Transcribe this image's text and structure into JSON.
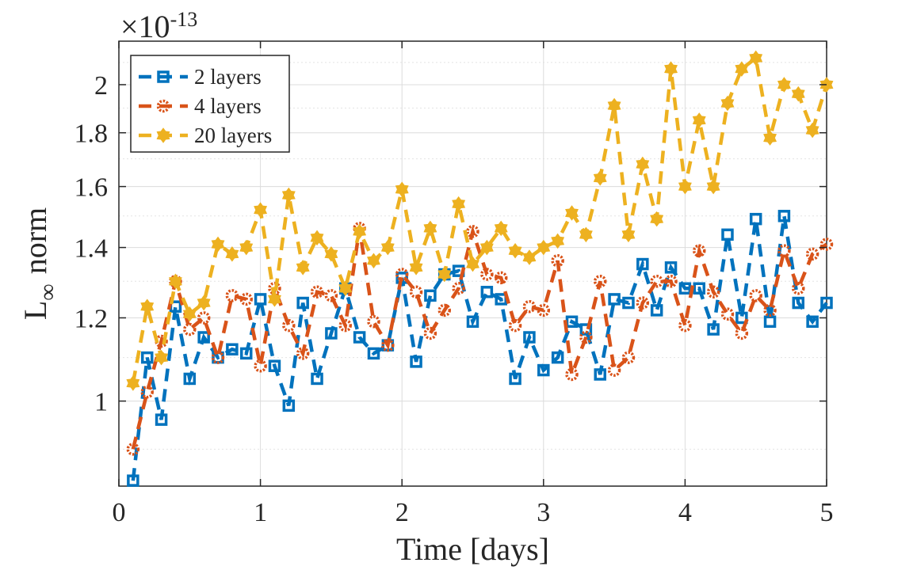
{
  "chart_data": {
    "type": "line",
    "title": "",
    "xlabel": "Time [days]",
    "ylabel_main": "L",
    "ylabel_sub": "∞",
    "ylabel_rest": "norm",
    "yscale": "log",
    "exponent_label": {
      "base": "×10",
      "exp": "-13"
    },
    "xlim": [
      0,
      5
    ],
    "ylim": [
      0.83,
      2.2
    ],
    "xticks": [
      0,
      1,
      2,
      3,
      4,
      5
    ],
    "xtick_labels": [
      "0",
      "1",
      "2",
      "3",
      "4",
      "5"
    ],
    "yticks": [
      1,
      1.2,
      1.4,
      1.6,
      1.8,
      2
    ],
    "ytick_labels": [
      "1",
      "1.2",
      "1.4",
      "1.6",
      "1.8",
      "2"
    ],
    "grid": true,
    "minor_grid": true,
    "legend_position": "top-left",
    "x": [
      0.1,
      0.2,
      0.3,
      0.4,
      0.5,
      0.6,
      0.7,
      0.8,
      0.9,
      1.0,
      1.1,
      1.2,
      1.3,
      1.4,
      1.5,
      1.6,
      1.7,
      1.8,
      1.9,
      2.0,
      2.1,
      2.2,
      2.3,
      2.4,
      2.5,
      2.6,
      2.7,
      2.8,
      2.9,
      3.0,
      3.1,
      3.2,
      3.3,
      3.4,
      3.5,
      3.6,
      3.7,
      3.8,
      3.9,
      4.0,
      4.1,
      4.2,
      4.3,
      4.4,
      4.5,
      4.6,
      4.7,
      4.8,
      4.9,
      5.0
    ],
    "series": [
      {
        "name": "2 layers",
        "color": "#0072BD",
        "marker": "square",
        "values": [
          0.84,
          1.1,
          0.96,
          1.23,
          1.05,
          1.15,
          1.1,
          1.12,
          1.11,
          1.25,
          1.08,
          0.99,
          1.24,
          1.05,
          1.16,
          1.28,
          1.15,
          1.11,
          1.13,
          1.31,
          1.09,
          1.26,
          1.32,
          1.33,
          1.19,
          1.27,
          1.25,
          1.05,
          1.15,
          1.07,
          1.1,
          1.19,
          1.17,
          1.06,
          1.25,
          1.24,
          1.35,
          1.22,
          1.34,
          1.28,
          1.28,
          1.17,
          1.44,
          1.2,
          1.49,
          1.19,
          1.5,
          1.24,
          1.19,
          1.24
        ]
      },
      {
        "name": "4 layers",
        "color": "#D95319",
        "marker": "circle",
        "values": [
          0.9,
          1.02,
          1.14,
          1.3,
          1.17,
          1.2,
          1.1,
          1.26,
          1.25,
          1.08,
          1.28,
          1.18,
          1.11,
          1.27,
          1.26,
          1.18,
          1.46,
          1.19,
          1.13,
          1.32,
          1.27,
          1.16,
          1.22,
          1.28,
          1.45,
          1.32,
          1.31,
          1.18,
          1.23,
          1.22,
          1.36,
          1.06,
          1.15,
          1.3,
          1.07,
          1.1,
          1.24,
          1.3,
          1.3,
          1.18,
          1.39,
          1.27,
          1.21,
          1.16,
          1.26,
          1.22,
          1.39,
          1.28,
          1.38,
          1.41
        ]
      },
      {
        "name": "20 layers",
        "color": "#EDB120",
        "marker": "hexagram",
        "values": [
          1.04,
          1.23,
          1.1,
          1.3,
          1.21,
          1.24,
          1.41,
          1.38,
          1.4,
          1.52,
          1.25,
          1.57,
          1.34,
          1.43,
          1.38,
          1.28,
          1.45,
          1.36,
          1.4,
          1.59,
          1.34,
          1.46,
          1.32,
          1.54,
          1.35,
          1.4,
          1.46,
          1.39,
          1.37,
          1.4,
          1.42,
          1.51,
          1.44,
          1.63,
          1.91,
          1.44,
          1.68,
          1.49,
          2.07,
          1.6,
          1.85,
          1.6,
          1.92,
          2.07,
          2.12,
          1.78,
          2.0,
          1.96,
          1.81,
          2.0
        ]
      }
    ]
  }
}
